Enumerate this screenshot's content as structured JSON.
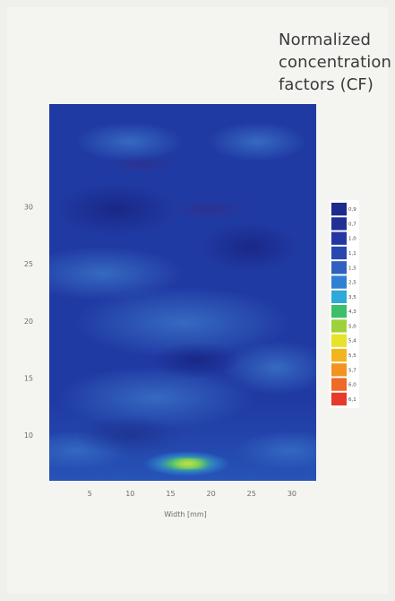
{
  "title": "Normalized\nconcentration\nfactors (CF)",
  "chart_data": {
    "type": "heatmap",
    "title": "Normalized concentration factors (CF)",
    "xlabel": "Width [mm]",
    "ylabel": "",
    "x_ticks": [
      "5",
      "10",
      "15",
      "20",
      "25",
      "30"
    ],
    "y_ticks": [
      "10",
      "15",
      "20",
      "25",
      "30"
    ],
    "xlim": [
      0,
      33
    ],
    "ylim": [
      6,
      39
    ],
    "legend_position": "right",
    "colorbar_labels": [
      "0,9",
      "0,7",
      "1,0",
      "1,1",
      "1,5",
      "2,5",
      "3,5",
      "4,3",
      "5,0",
      "5,4",
      "5,5",
      "5,7",
      "6,0",
      "6,1"
    ],
    "colorbar_colors": [
      "#1e2a8c",
      "#202f96",
      "#2438a3",
      "#2a47b0",
      "#3160c0",
      "#2f80d2",
      "#2fa9d8",
      "#3bbf6a",
      "#9fd23a",
      "#e8e22a",
      "#f3b51f",
      "#f39322",
      "#ee6a26",
      "#e63b2a"
    ],
    "base_color": "#203aa4",
    "hotspot": {
      "x": 17,
      "y": 7.5,
      "value": 4.3
    }
  }
}
